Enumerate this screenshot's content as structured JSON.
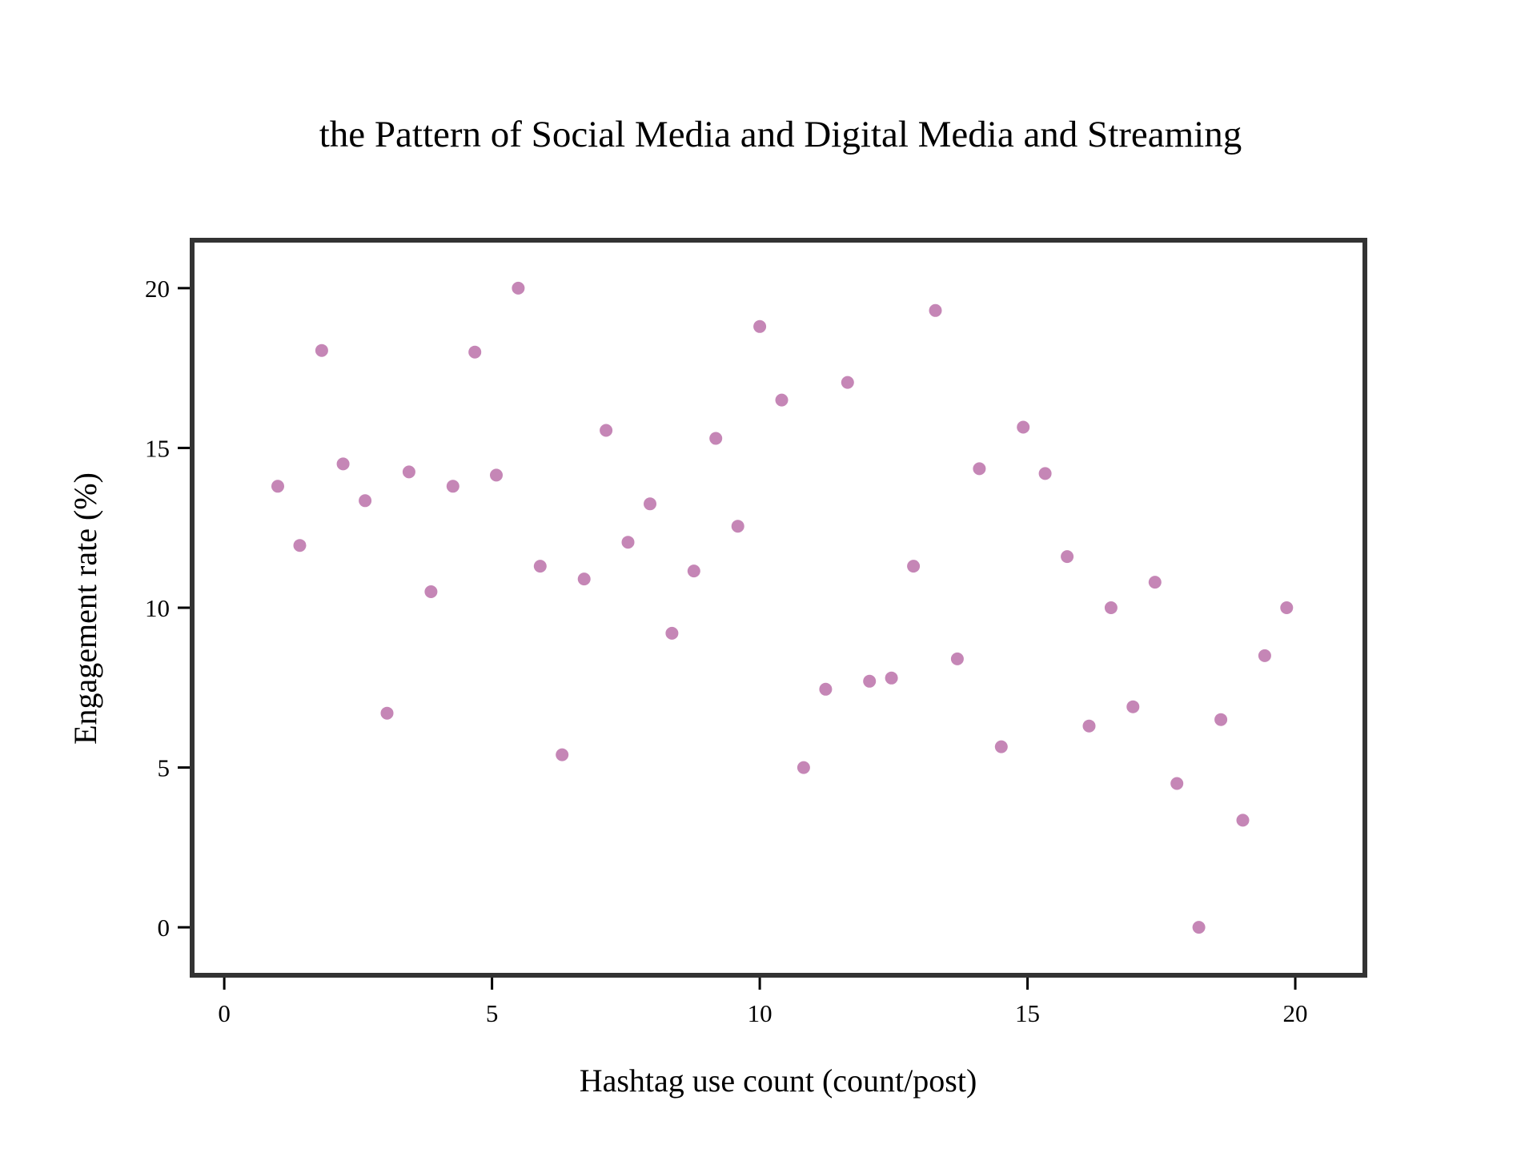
{
  "chart_data": {
    "type": "scatter",
    "title": "the Pattern of Social Media and Digital Media and Streaming",
    "xlabel": "Hashtag use count (count/post)",
    "ylabel": "Engagement rate (%)",
    "xlim": [
      -0.6,
      21.3
    ],
    "ylim": [
      -1.5,
      21.5
    ],
    "xticks": [
      0,
      5,
      10,
      15,
      20
    ],
    "xtick_labels": [
      "0",
      "5",
      "10",
      "15",
      "20"
    ],
    "yticks": [
      0,
      5,
      10,
      15,
      20
    ],
    "ytick_labels": [
      "0",
      "5",
      "10",
      "15",
      "20"
    ],
    "grid": false,
    "legend": "none",
    "colors": {
      "point": "#c586b6",
      "frame": "#333333",
      "text": "#000000",
      "background": "#ffffff"
    },
    "x": [
      1.0,
      1.41,
      1.82,
      2.22,
      2.63,
      3.04,
      3.45,
      3.86,
      4.27,
      4.68,
      5.08,
      5.49,
      5.9,
      6.31,
      6.72,
      7.13,
      7.54,
      7.95,
      8.36,
      8.77,
      9.18,
      9.59,
      10.0,
      10.41,
      10.82,
      11.23,
      11.64,
      12.05,
      12.46,
      12.87,
      13.28,
      13.69,
      14.1,
      14.51,
      14.92,
      15.33,
      15.74,
      16.15,
      16.56,
      16.97,
      17.38,
      17.79,
      18.2,
      18.61,
      19.02,
      19.43,
      19.84
    ],
    "y": [
      13.8,
      11.95,
      18.05,
      14.5,
      13.35,
      6.7,
      14.25,
      10.5,
      13.8,
      18.0,
      14.15,
      20.0,
      11.3,
      5.4,
      10.9,
      15.55,
      12.05,
      13.25,
      9.2,
      11.15,
      15.3,
      12.55,
      18.8,
      16.5,
      5.0,
      7.45,
      17.05,
      7.7,
      7.8,
      11.3,
      19.3,
      8.4,
      14.35,
      5.65,
      15.65,
      14.2,
      11.6,
      6.3,
      10.0,
      6.9,
      10.8,
      4.5,
      0.0,
      6.5,
      3.35,
      8.5,
      10.0
    ]
  }
}
